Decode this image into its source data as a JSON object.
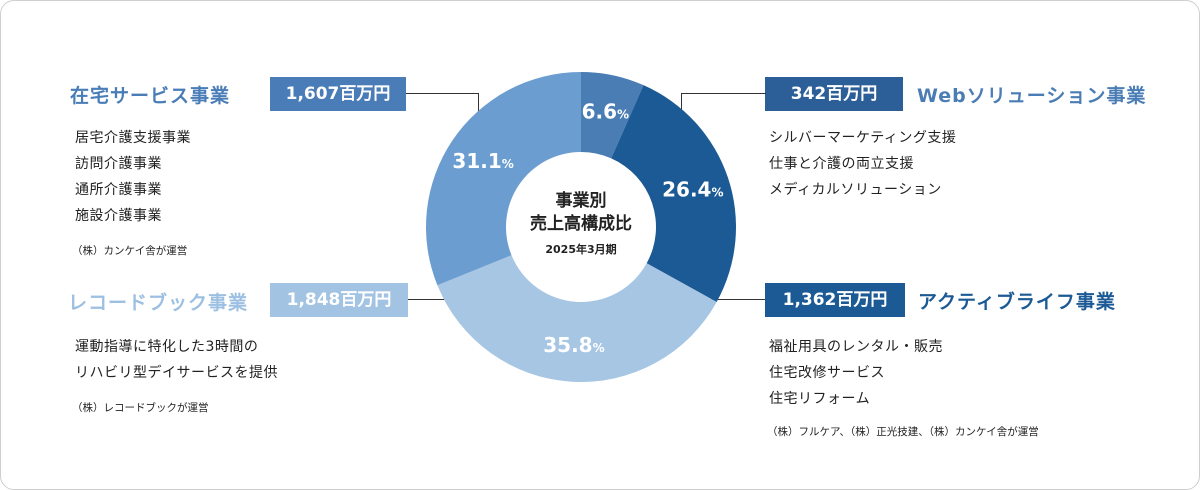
{
  "chart_data": {
    "type": "pie",
    "variant": "donut",
    "center_title_lines": [
      "事業別",
      "売上高構成比"
    ],
    "center_subtitle": "2025年3月期",
    "start_clockwise_from_top": true,
    "segments": [
      {
        "name": "Webソリューション事業",
        "value": 6.6,
        "pct_label": "6.6",
        "amount": "342百万円",
        "color": "#4b7db5"
      },
      {
        "name": "アクティブライフ事業",
        "value": 26.4,
        "pct_label": "26.4",
        "amount": "1,362百万円",
        "color": "#1b5a94"
      },
      {
        "name": "レコードブック事業",
        "value": 35.8,
        "pct_label": "35.8",
        "amount": "1,848百万円",
        "color": "#a7c6e4"
      },
      {
        "name": "在宅サービス事業",
        "value": 31.1,
        "pct_label": "31.1",
        "amount": "1,607百万円",
        "color": "#6c9dd0"
      }
    ],
    "pct_suffix": "%"
  },
  "panels": {
    "zaitaku": {
      "title": "在宅サービス事業",
      "amount": "1,607百万円",
      "items": [
        "居宅介護支援事業",
        "訪問介護事業",
        "通所介護事業",
        "施設介護事業"
      ],
      "note": "（株）カンケイ舎が運営",
      "title_color": "#4a7db7",
      "badge_color": "#4a7db7"
    },
    "record": {
      "title": "レコードブック事業",
      "amount": "1,848百万円",
      "items": [
        "運動指導に特化した3時間の",
        "リハビリ型デイサービスを提供"
      ],
      "note": "（株）レコードブックが運営",
      "title_color": "#9dc0e2",
      "badge_color": "#a3c3e3"
    },
    "web": {
      "title": "Webソリューション事業",
      "amount": "342百万円",
      "items": [
        "シルバーマーケティング支援",
        "仕事と介護の両立支援",
        "メディカルソリューション"
      ],
      "title_color": "#4b7db5",
      "badge_color": "#2c5f98"
    },
    "active": {
      "title": "アクティブライフ事業",
      "amount": "1,362百万円",
      "items": [
        "福祉用具のレンタル・販売",
        "住宅改修サービス",
        "住宅リフォーム"
      ],
      "note": "（株）フルケア、（株）正光技建、（株）カンケイ舎が運営",
      "title_color": "#1b5a94",
      "badge_color": "#1b5a94"
    }
  }
}
